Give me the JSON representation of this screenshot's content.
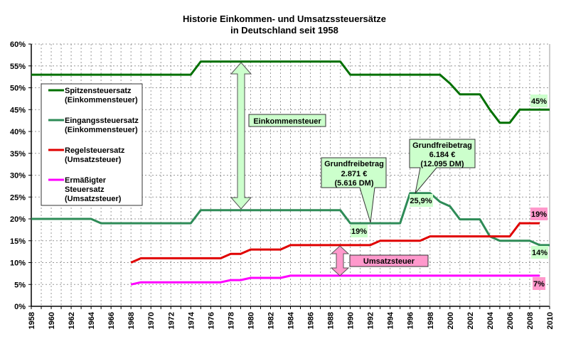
{
  "chart_data": {
    "type": "line",
    "title": [
      "Historie Einkommen- und Umsatzssteuersätze",
      "in Deutschland seit 1958"
    ],
    "xlabel": "",
    "ylabel": "",
    "xlim": [
      1958,
      2010
    ],
    "ylim": [
      0,
      60
    ],
    "grid": true,
    "legend_position": "left",
    "x_ticks": [
      1958,
      1960,
      1962,
      1964,
      1966,
      1968,
      1970,
      1972,
      1974,
      1976,
      1978,
      1980,
      1982,
      1984,
      1986,
      1988,
      1990,
      1992,
      1994,
      1996,
      1998,
      2000,
      2002,
      2004,
      2006,
      2008,
      2010
    ],
    "y_ticks": [
      "0%",
      "5%",
      "10%",
      "15%",
      "20%",
      "25%",
      "30%",
      "35%",
      "40%",
      "45%",
      "50%",
      "55%",
      "60%"
    ],
    "series": [
      {
        "name": "Spitzensteuersatz\n(Einkommensteuer)",
        "color": "#007000",
        "x": [
          1958,
          1974,
          1975,
          1989,
          1990,
          1999,
          2000,
          2001,
          2003,
          2004,
          2005,
          2006,
          2007,
          2010
        ],
        "values": [
          53,
          53,
          56,
          56,
          53,
          53,
          51,
          48.5,
          48.5,
          45,
          42,
          42,
          45,
          45
        ]
      },
      {
        "name": "Eingangssteuersatz\n(Einkommensteuer)",
        "color": "#2E8B57",
        "x": [
          1958,
          1964,
          1965,
          1974,
          1975,
          1989,
          1990,
          1995,
          1996,
          1998,
          1999,
          2000,
          2001,
          2003,
          2004,
          2005,
          2008,
          2009,
          2010
        ],
        "values": [
          20,
          20,
          19,
          19,
          22,
          22,
          19,
          19,
          25.9,
          25.9,
          23.9,
          22.9,
          19.9,
          19.9,
          16,
          15,
          15,
          14,
          14
        ]
      },
      {
        "name": "Regelsteuersatz\n(Umsatzsteuer)",
        "color": "#E00000",
        "x": [
          1968,
          1969,
          1977,
          1978,
          1979,
          1980,
          1983,
          1984,
          1992,
          1993,
          1997,
          1998,
          2006,
          2007,
          2009
        ],
        "values": [
          10,
          11,
          11,
          12,
          12,
          13,
          13,
          14,
          14,
          15,
          15,
          16,
          16,
          19,
          19
        ]
      },
      {
        "name": "Ermäßigter\nSteuersatz\n(Umsatzsteuer)",
        "color": "#FF00FF",
        "x": [
          1968,
          1969,
          1977,
          1978,
          1979,
          1980,
          1983,
          1984,
          2009
        ],
        "values": [
          5,
          5.5,
          5.5,
          6,
          6,
          6.5,
          6.5,
          7,
          7
        ]
      }
    ],
    "annotations": {
      "einkommensteuer": "Einkommensteuer",
      "umsatzsteuer": "Umsatzsteuer",
      "callout1": [
        "Grundfreibetrag",
        "2.871 €",
        "(5.616 DM)"
      ],
      "callout2": [
        "Grundfreibetrag",
        "6.184 €",
        "(12.095 DM)"
      ],
      "label_19_eingang": "19%",
      "label_259": "25,9%",
      "label_45": "45%",
      "label_19_regel": "19%",
      "label_14": "14%",
      "label_7": "7%"
    },
    "colors": {
      "green_box": "#CCFFCC",
      "pink_box": "#FF99CC"
    }
  }
}
